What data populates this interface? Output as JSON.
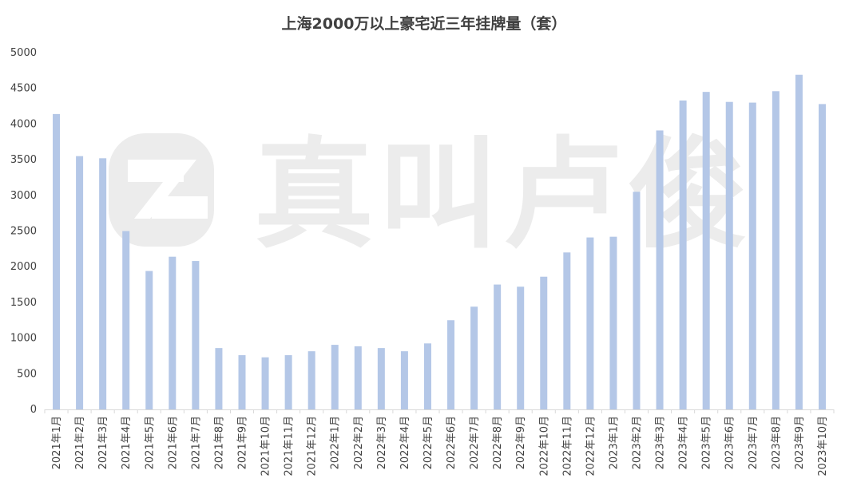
{
  "chart_data": {
    "type": "bar",
    "title": "上海2000万以上豪宅近三年挂牌量（套）",
    "xlabel": "",
    "ylabel": "",
    "ylim": [
      0,
      5000
    ],
    "yticks": [
      0,
      500,
      1000,
      1500,
      2000,
      2500,
      3000,
      3500,
      4000,
      4500,
      5000
    ],
    "grid": false,
    "legend": "none",
    "bar_color": "#b4c7e7",
    "categories": [
      "2021年1月",
      "2021年2月",
      "2021年3月",
      "2021年4月",
      "2021年5月",
      "2021年6月",
      "2021年7月",
      "2021年8月",
      "2021年9月",
      "2021年10月",
      "2021年11月",
      "2021年12月",
      "2022年1月",
      "2022年2月",
      "2022年3月",
      "2022年4月",
      "2022年5月",
      "2022年6月",
      "2022年7月",
      "2022年8月",
      "2022年9月",
      "2022年10月",
      "2022年11月",
      "2022年12月",
      "2023年1月",
      "2023年2月",
      "2023年3月",
      "2023年4月",
      "2023年5月",
      "2023年6月",
      "2023年7月",
      "2023年8月",
      "2023年9月",
      "2023年10月"
    ],
    "values": [
      4140,
      3550,
      3520,
      2500,
      1940,
      2140,
      2080,
      860,
      760,
      730,
      760,
      815,
      905,
      885,
      860,
      815,
      925,
      1250,
      1440,
      1750,
      1720,
      1860,
      2200,
      2410,
      2420,
      3050,
      3910,
      4330,
      4450,
      4310,
      4300,
      4460,
      4690,
      4280
    ]
  },
  "watermark": {
    "text": "真叫卢俊"
  }
}
